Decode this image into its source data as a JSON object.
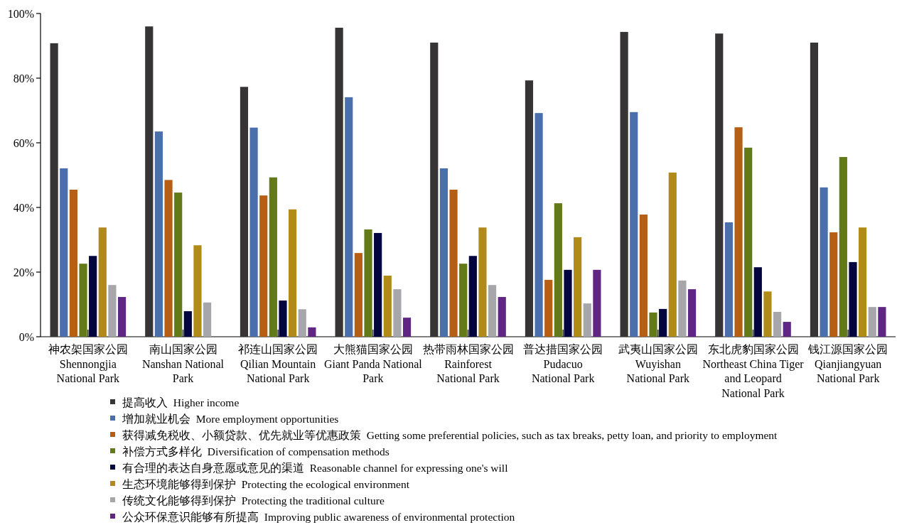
{
  "chart_data": {
    "type": "bar",
    "categories": [
      "神农架国家公园\nShennongjia\nNational Park",
      "南山国家公园\nNanshan National\nPark",
      "祁连山国家公园\nQilian Mountain\nNational Park",
      "大熊猫国家公园\nGiant Panda National\nPark",
      "热带雨林国家公园\nRainforest\nNational Park",
      "普达措国家公园\nPudacuo\nNational Park",
      "武夷山国家公园\nWuyishan\nNational Park",
      "东北虎豹国家公园\nNortheast China Tiger\nand Leopard\nNational Park",
      "钱江源国家公园\nQianjiangyuan\nNational Park"
    ],
    "series": [
      {
        "name": "提高收入  Higher income",
        "color": "#363435",
        "values": [
          90.8,
          96,
          77.3,
          95.6,
          91,
          79.3,
          94.3,
          93.8,
          91
        ]
      },
      {
        "name": "增加就业机会  More employment opportunities",
        "color": "#4a6fac",
        "values": [
          52.1,
          63.5,
          64.7,
          74.1,
          52.1,
          69.2,
          69.5,
          35.4,
          46.2
        ]
      },
      {
        "name": "获得减免税收、小额贷款、优先就业等优惠政策  Getting some preferential policies, such as tax breaks, petty loan, and priority to employment",
        "color": "#b65e14",
        "values": [
          45.5,
          48.5,
          43.7,
          25.9,
          45.5,
          17.6,
          37.8,
          64.8,
          32.3
        ]
      },
      {
        "name": "补偿方式多样化  Diversification of compensation methods",
        "color": "#637a18",
        "values": [
          22.6,
          44.6,
          49.3,
          33.2,
          22.6,
          41.3,
          7.5,
          58.5,
          55.6
        ]
      },
      {
        "name": "有合理的表达自身意愿或意见的渠道  Reasonable channel for expressing one's will",
        "color": "#03053e",
        "values": [
          25,
          7.9,
          11.2,
          32.1,
          25,
          20.7,
          8.6,
          21.5,
          23.1
        ]
      },
      {
        "name": "生态环境能够得到保护  Protecting the ecological environment",
        "color": "#b18b17",
        "values": [
          33.8,
          28.3,
          39.4,
          18.9,
          33.8,
          30.8,
          50.8,
          14,
          33.8
        ]
      },
      {
        "name": "传统文化能够得到保护  Protecting the traditional culture",
        "color": "#a7a6aa",
        "values": [
          16,
          10.6,
          8.5,
          14.7,
          16,
          10.3,
          17.4,
          7.7,
          9.2
        ]
      },
      {
        "name": "公众环保意识能够有所提高  Improving public awareness of environmental protection",
        "color": "#5f2683",
        "values": [
          12.3,
          0,
          2.9,
          5.9,
          12.3,
          20.7,
          14.7,
          4.6,
          9.2
        ]
      }
    ],
    "ylim": [
      0,
      100
    ],
    "yticks": [
      {
        "value": 0,
        "label": "0%"
      },
      {
        "value": 20,
        "label": "20%"
      },
      {
        "value": 40,
        "label": "40%"
      },
      {
        "value": 60,
        "label": "60%"
      },
      {
        "value": 80,
        "label": "80%"
      },
      {
        "value": 100,
        "label": "100%"
      }
    ],
    "legend": "bottom",
    "grid": false
  }
}
